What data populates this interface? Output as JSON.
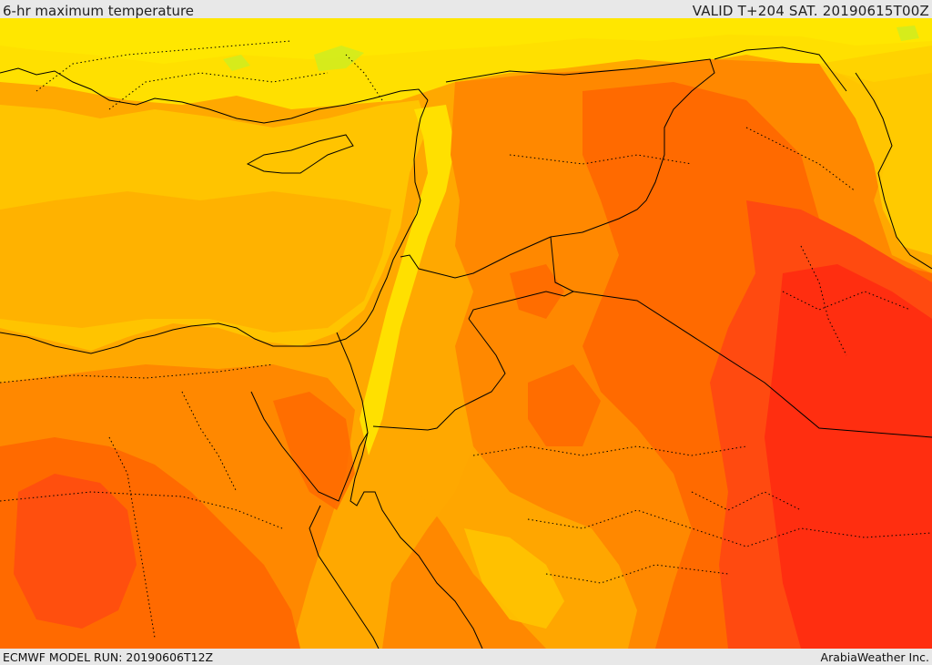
{
  "header": {
    "title": "6-hr maximum temperature",
    "valid": "VALID T+204 SAT. 20190615T00Z"
  },
  "footer": {
    "model_run": "ECMWF MODEL RUN: 20190606T12Z",
    "credit": "ArabiaWeather Inc."
  },
  "map": {
    "region": "Eastern Mediterranean / Levant / Arabia",
    "legend_shown": false,
    "fill_colors": {
      "lightest": "#ccee22",
      "yellow": "#ffe000",
      "gold": "#ffc400",
      "amber": "#ffa800",
      "orange": "#ff8800",
      "dark_orange": "#ff6a00",
      "red_orange": "#ff4a10",
      "red": "#ff2e10"
    },
    "boundary_color": "#000000"
  }
}
